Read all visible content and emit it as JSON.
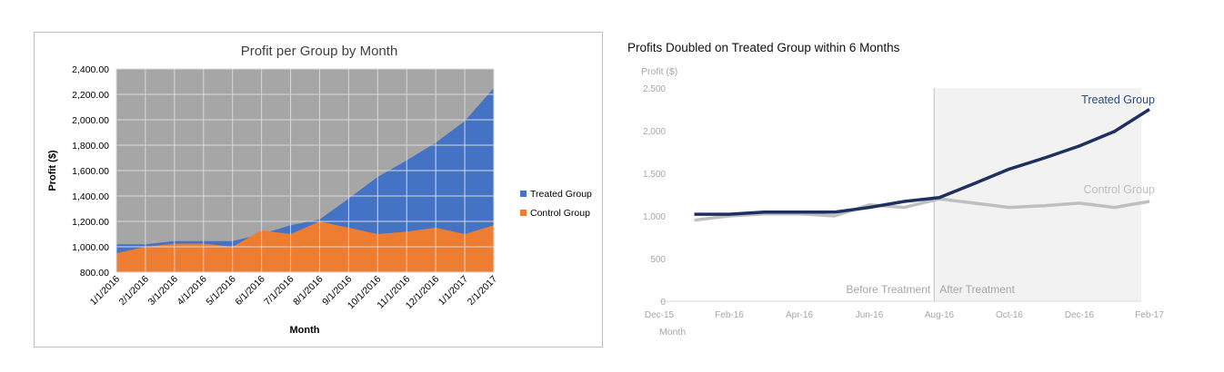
{
  "chart_data": [
    {
      "type": "area",
      "title": "Profit per Group by Month",
      "xlabel": "Month",
      "ylabel": "Profit ($)",
      "categories": [
        "1/1/2016",
        "2/1/2016",
        "3/1/2016",
        "4/1/2016",
        "5/1/2016",
        "6/1/2016",
        "7/1/2016",
        "8/1/2016",
        "9/1/2016",
        "10/1/2016",
        "11/1/2016",
        "12/1/2016",
        "1/1/2017",
        "2/1/2017"
      ],
      "ylim": [
        800,
        2400
      ],
      "yticks": [
        "800.00",
        "1,000.00",
        "1,200.00",
        "1,400.00",
        "1,600.00",
        "1,800.00",
        "2,000.00",
        "2,200.00",
        "2,400.00"
      ],
      "grid": true,
      "legend_position": "right",
      "series": [
        {
          "name": "Treated Group",
          "color": "#4472c4",
          "values": [
            1020,
            1020,
            1045,
            1045,
            1045,
            1100,
            1170,
            1215,
            1380,
            1550,
            1680,
            1820,
            1990,
            2250
          ]
        },
        {
          "name": "Control Group",
          "color": "#ed7d31",
          "values": [
            950,
            1000,
            1025,
            1025,
            1000,
            1130,
            1100,
            1200,
            1150,
            1100,
            1120,
            1150,
            1100,
            1170
          ]
        }
      ]
    },
    {
      "type": "line",
      "title": "Profits Doubled on Treated Group within 6 Months",
      "ylabel": "Profit ($)",
      "xlabel": "Month",
      "x": [
        "2016-01",
        "2016-02",
        "2016-03",
        "2016-04",
        "2016-05",
        "2016-06",
        "2016-07",
        "2016-08",
        "2016-09",
        "2016-10",
        "2016-11",
        "2016-12",
        "2017-01",
        "2017-02"
      ],
      "xticks": [
        "Dec-15",
        "Feb-16",
        "Apr-16",
        "Jun-16",
        "Aug-16",
        "Oct-16",
        "Dec-16",
        "Feb-17"
      ],
      "ylim": [
        0,
        2500
      ],
      "yticks": [
        "0",
        "500",
        "1,000",
        "1,500",
        "2,000",
        "2,500"
      ],
      "grid": false,
      "annotations": {
        "before": "Before Treatment",
        "after": "After Treatment"
      },
      "series": [
        {
          "name": "Treated Group",
          "color": "#1f3060",
          "values": [
            1020,
            1020,
            1045,
            1045,
            1045,
            1100,
            1170,
            1215,
            1380,
            1550,
            1680,
            1820,
            1990,
            2250
          ]
        },
        {
          "name": "Control Group",
          "color": "#bfbfbf",
          "values": [
            950,
            1000,
            1025,
            1025,
            1000,
            1130,
            1100,
            1200,
            1150,
            1100,
            1120,
            1150,
            1100,
            1170
          ]
        }
      ]
    }
  ]
}
